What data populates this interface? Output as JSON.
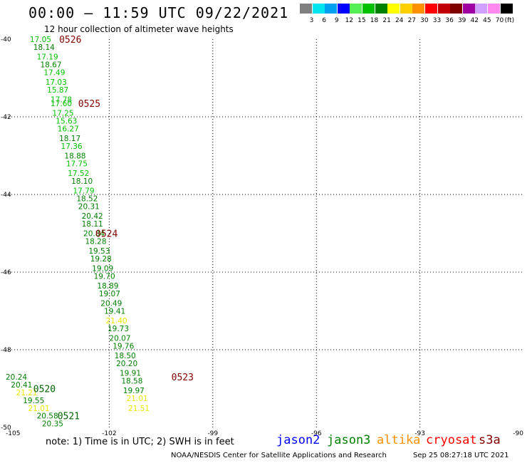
{
  "header": {
    "title": "00:00 – 11:59 UTC 09/22/2021",
    "subtitle": "12 hour collection of altimeter wave heights"
  },
  "legend": {
    "swatches": [
      {
        "color": "#808080",
        "label": "3"
      },
      {
        "color": "#00e5ee",
        "label": "6"
      },
      {
        "color": "#00a0f0",
        "label": "9"
      },
      {
        "color": "#0000ff",
        "label": "12"
      },
      {
        "color": "#55ee55",
        "label": "15"
      },
      {
        "color": "#00c000",
        "label": "18"
      },
      {
        "color": "#008000",
        "label": "21"
      },
      {
        "color": "#ffff00",
        "label": "24"
      },
      {
        "color": "#ffd000",
        "label": "27"
      },
      {
        "color": "#ff9000",
        "label": "30"
      },
      {
        "color": "#ff0000",
        "label": "33"
      },
      {
        "color": "#c00000",
        "label": "36"
      },
      {
        "color": "#800000",
        "label": "39"
      },
      {
        "color": "#a000a0",
        "label": "42"
      },
      {
        "color": "#d0a0ff",
        "label": "45"
      },
      {
        "color": "#ff88ee",
        "label": "70"
      },
      {
        "color": "#000000",
        "label": ""
      }
    ],
    "unit": "(ft)"
  },
  "map_axes": {
    "lon_ticks": [
      "-105",
      "-102",
      "-99",
      "-96",
      "-93",
      "-90"
    ],
    "lat_ticks": [
      "-40",
      "-42",
      "-44",
      "-46",
      "-48",
      "-50"
    ]
  },
  "tracks": {
    "pass_labels": [
      {
        "text": "0526",
        "lon": -103.45,
        "lat": -40.0,
        "color": "#800000"
      },
      {
        "text": "0525",
        "lon": -102.9,
        "lat": -41.65,
        "color": "#800000"
      },
      {
        "text": "0524",
        "lon": -102.4,
        "lat": -45.0,
        "color": "#800000"
      },
      {
        "text": "0523",
        "lon": -100.2,
        "lat": -48.7,
        "color": "#800000"
      },
      {
        "text": "0520",
        "lon": -104.2,
        "lat": -49.0,
        "color": "#006400"
      },
      {
        "text": "0521",
        "lon": -103.5,
        "lat": -49.7,
        "color": "#006400"
      }
    ],
    "points": [
      {
        "v": "17.05",
        "lon": -104.3,
        "lat": -40.0,
        "c": "#00c000"
      },
      {
        "v": "18.14",
        "lon": -104.2,
        "lat": -40.2,
        "c": "#008000"
      },
      {
        "v": "17.19",
        "lon": -104.1,
        "lat": -40.45,
        "c": "#00c000"
      },
      {
        "v": "18.67",
        "lon": -104.0,
        "lat": -40.65,
        "c": "#008000"
      },
      {
        "v": "17.49",
        "lon": -103.9,
        "lat": -40.85,
        "c": "#00c000"
      },
      {
        "v": "17.03",
        "lon": -103.85,
        "lat": -41.1,
        "c": "#00c000"
      },
      {
        "v": "15.87",
        "lon": -103.8,
        "lat": -41.3,
        "c": "#00c000"
      },
      {
        "v": "17.78",
        "lon": -103.7,
        "lat": -41.55,
        "c": "#00c000"
      },
      {
        "v": "17.60",
        "lon": -103.7,
        "lat": -41.65,
        "c": "#00c000"
      },
      {
        "v": "17.25",
        "lon": -103.65,
        "lat": -41.9,
        "c": "#00c000"
      },
      {
        "v": "15.63",
        "lon": -103.55,
        "lat": -42.1,
        "c": "#00c000"
      },
      {
        "v": "16.27",
        "lon": -103.5,
        "lat": -42.3,
        "c": "#00c000"
      },
      {
        "v": "18.17",
        "lon": -103.45,
        "lat": -42.55,
        "c": "#008000"
      },
      {
        "v": "17.36",
        "lon": -103.4,
        "lat": -42.75,
        "c": "#00c000"
      },
      {
        "v": "18.88",
        "lon": -103.3,
        "lat": -43.0,
        "c": "#008000"
      },
      {
        "v": "17.75",
        "lon": -103.25,
        "lat": -43.2,
        "c": "#00c000"
      },
      {
        "v": "17.52",
        "lon": -103.2,
        "lat": -43.45,
        "c": "#00c000"
      },
      {
        "v": "18.10",
        "lon": -103.1,
        "lat": -43.65,
        "c": "#008000"
      },
      {
        "v": "17.79",
        "lon": -103.05,
        "lat": -43.9,
        "c": "#00c000"
      },
      {
        "v": "18.52",
        "lon": -102.95,
        "lat": -44.1,
        "c": "#008000"
      },
      {
        "v": "20.31",
        "lon": -102.9,
        "lat": -44.3,
        "c": "#008000"
      },
      {
        "v": "20.42",
        "lon": -102.8,
        "lat": -44.55,
        "c": "#008000"
      },
      {
        "v": "18.11",
        "lon": -102.8,
        "lat": -44.75,
        "c": "#008000"
      },
      {
        "v": "20.84",
        "lon": -102.75,
        "lat": -45.0,
        "c": "#008000"
      },
      {
        "v": "18.28",
        "lon": -102.7,
        "lat": -45.2,
        "c": "#008000"
      },
      {
        "v": "19.53",
        "lon": -102.6,
        "lat": -45.45,
        "c": "#008000"
      },
      {
        "v": "19.28",
        "lon": -102.55,
        "lat": -45.65,
        "c": "#008000"
      },
      {
        "v": "19.09",
        "lon": -102.5,
        "lat": -45.9,
        "c": "#008000"
      },
      {
        "v": "19.70",
        "lon": -102.45,
        "lat": -46.1,
        "c": "#008000"
      },
      {
        "v": "18.89",
        "lon": -102.35,
        "lat": -46.35,
        "c": "#008000"
      },
      {
        "v": "19.07",
        "lon": -102.3,
        "lat": -46.55,
        "c": "#008000"
      },
      {
        "v": "20.49",
        "lon": -102.25,
        "lat": -46.8,
        "c": "#008000"
      },
      {
        "v": "19.41",
        "lon": -102.15,
        "lat": -47.0,
        "c": "#008000"
      },
      {
        "v": "21.40",
        "lon": -102.1,
        "lat": -47.25,
        "c": "#e8e800"
      },
      {
        "v": "19.73",
        "lon": -102.05,
        "lat": -47.45,
        "c": "#008000"
      },
      {
        "v": "20.07",
        "lon": -102.0,
        "lat": -47.7,
        "c": "#008000"
      },
      {
        "v": "19.76",
        "lon": -101.9,
        "lat": -47.9,
        "c": "#008000"
      },
      {
        "v": "18.50",
        "lon": -101.85,
        "lat": -48.15,
        "c": "#008000"
      },
      {
        "v": "20.20",
        "lon": -101.8,
        "lat": -48.35,
        "c": "#008000"
      },
      {
        "v": "19.91",
        "lon": -101.7,
        "lat": -48.6,
        "c": "#008000"
      },
      {
        "v": "18.58",
        "lon": -101.65,
        "lat": -48.8,
        "c": "#008000"
      },
      {
        "v": "19.97",
        "lon": -101.6,
        "lat": -49.05,
        "c": "#008000"
      },
      {
        "v": "21.01",
        "lon": -101.5,
        "lat": -49.25,
        "c": "#e8e800"
      },
      {
        "v": "21.51",
        "lon": -101.45,
        "lat": -49.5,
        "c": "#e8e800"
      },
      {
        "v": "20.24",
        "lon": -105.0,
        "lat": -48.7,
        "c": "#008000"
      },
      {
        "v": "20.41",
        "lon": -104.85,
        "lat": -48.9,
        "c": "#008000"
      },
      {
        "v": "21.21",
        "lon": -104.7,
        "lat": -49.1,
        "c": "#e8e800"
      },
      {
        "v": "19.55",
        "lon": -104.5,
        "lat": -49.3,
        "c": "#008000"
      },
      {
        "v": "21.01",
        "lon": -104.35,
        "lat": -49.5,
        "c": "#e8e800"
      },
      {
        "v": "20.58",
        "lon": -104.1,
        "lat": -49.7,
        "c": "#008000"
      },
      {
        "v": "20.35",
        "lon": -103.95,
        "lat": -49.9,
        "c": "#008000"
      }
    ]
  },
  "footer": {
    "note": "note:  1) Time is in UTC;  2) SWH is in feet",
    "satellites": [
      {
        "name": "jason2",
        "color": "#0000ff"
      },
      {
        "name": "jason3",
        "color": "#008000"
      },
      {
        "name": "altika",
        "color": "#ff9000"
      },
      {
        "name": "cryosat",
        "color": "#ff0000"
      },
      {
        "name": "s3a",
        "color": "#800000"
      }
    ],
    "credit": "NOAA/NESDIS Center for Satellite Applications and Research",
    "timestamp": "Sep 25 08:27:18 UTC 2021"
  }
}
